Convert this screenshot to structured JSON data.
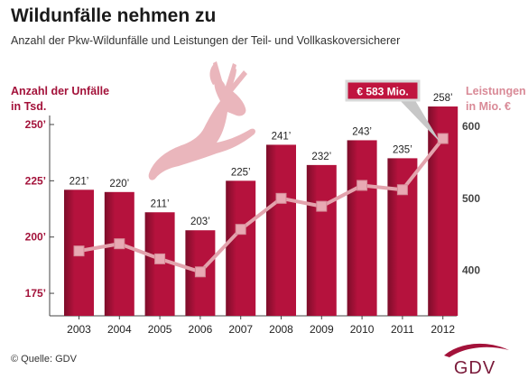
{
  "header": {
    "title": "Wildunfälle nehmen zu",
    "subtitle": "Anzahl der Pkw-Wildunfälle und Leistungen der Teil- und Vollkaskoversicherer"
  },
  "axis_labels": {
    "left_line1": "Anzahl der Unfälle",
    "left_line2": "in Tsd.",
    "right_line1": "Leistungen",
    "right_line2": "in Mio. €"
  },
  "source": "© Quelle: GDV",
  "logo_text": "GDV",
  "callout": "€ 583 Mio.",
  "colors": {
    "bar": "#b5123d",
    "bar_dark": "#7d0d2a",
    "line": "#e3a3ad",
    "marker": "#e8a9b3",
    "left_axis_text": "#a3123a",
    "right_axis_text": "#d98a97",
    "deer": "#eab6bc",
    "callout_box": "#c0143f"
  },
  "icons": {
    "deer": "deer-silhouette-icon",
    "logo": "gdv-logo-icon"
  },
  "chart_data": {
    "type": "bar+line",
    "categories": [
      "2003",
      "2004",
      "2005",
      "2006",
      "2007",
      "2008",
      "2009",
      "2010",
      "2011",
      "2012"
    ],
    "series": [
      {
        "axis": "left",
        "type": "bar",
        "values": [
          221,
          220,
          211,
          203,
          225,
          241,
          232,
          243,
          235,
          258
        ],
        "labels": [
          "221’",
          "220’",
          "211’",
          "203’",
          "225’",
          "241’",
          "232’",
          "243’",
          "235’",
          "258’"
        ]
      },
      {
        "axis": "right",
        "type": "line",
        "values": [
          427,
          437,
          416,
          398,
          457,
          500,
          489,
          518,
          512,
          583
        ]
      }
    ],
    "y_left": {
      "min": 165,
      "max": 254,
      "ticks": [
        175,
        200,
        225,
        250
      ],
      "tick_labels": [
        "175’",
        "200’",
        "225’",
        "250’"
      ]
    },
    "y_right": {
      "min": 337,
      "max": 615,
      "ticks": [
        400,
        500,
        600
      ],
      "tick_labels": [
        "400",
        "500",
        "600"
      ]
    },
    "grid": false,
    "legend": "none"
  }
}
